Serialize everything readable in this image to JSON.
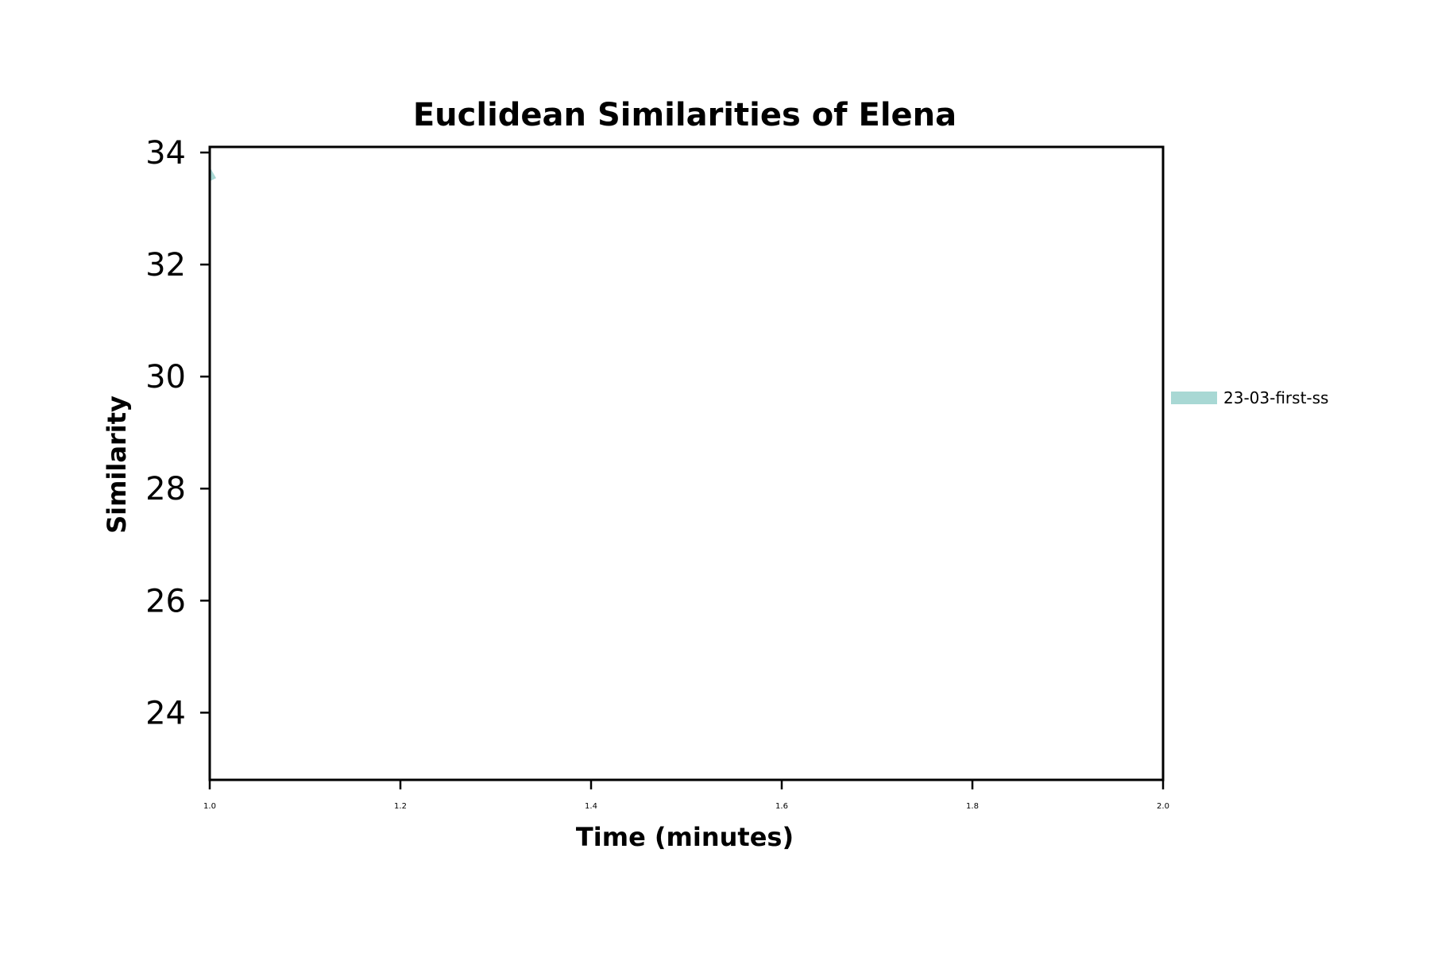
{
  "chart_data": {
    "type": "line",
    "title": "Euclidean Similarities of Elena",
    "xlabel": "Time (minutes)",
    "ylabel": "Similarity",
    "xlim": [
      1.0,
      2.0
    ],
    "ylim": [
      22.8,
      34.1
    ],
    "x_ticks": [
      "1.0",
      "1.2",
      "1.4",
      "1.6",
      "1.8",
      "2.0"
    ],
    "y_ticks": [
      "24",
      "26",
      "28",
      "30",
      "32",
      "34"
    ],
    "grid": false,
    "legend_position": "right",
    "series": [
      {
        "name": "23-03-first-ss",
        "color": "#a8d8d4",
        "x": [
          1.0
        ],
        "y": [
          33.6
        ]
      }
    ]
  }
}
